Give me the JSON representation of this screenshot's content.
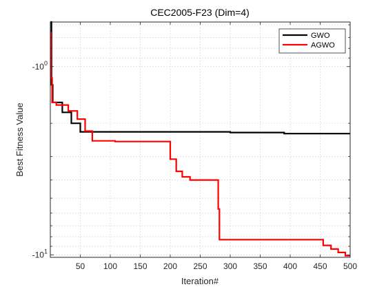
{
  "chart_data": {
    "type": "line",
    "title": "CEC2005-F23 (Dim=4)",
    "xlabel": "Iteration#",
    "ylabel": "Best Fitness Value",
    "xlim": [
      0,
      500
    ],
    "yscale": "log-magnitude (negative values)",
    "ylim": [
      -10.3,
      -0.58
    ],
    "xticks": [
      50,
      100,
      150,
      200,
      250,
      300,
      350,
      400,
      450,
      500
    ],
    "xtick_labels": [
      "50",
      "100",
      "150",
      "200",
      "250",
      "300",
      "350",
      "400",
      "450",
      "500"
    ],
    "ytick_labels": [
      {
        "value": -1,
        "label": "-10",
        "exp": "0"
      },
      {
        "value": -10,
        "label": "-10",
        "exp": "1"
      }
    ],
    "grid": true,
    "legend_position": "top-right",
    "series": [
      {
        "name": "GWO",
        "color": "#000000",
        "x": [
          0,
          2,
          2,
          4,
          4,
          20,
          20,
          35,
          35,
          50,
          50,
          300,
          300,
          390,
          390,
          500
        ],
        "y": [
          -0.58,
          -0.58,
          -1.25,
          -1.25,
          -1.55,
          -1.55,
          -1.75,
          -1.75,
          -2.0,
          -2.0,
          -2.22,
          -2.22,
          -2.24,
          -2.24,
          -2.27,
          -2.27
        ]
      },
      {
        "name": "AGWO",
        "color": "#ff0000",
        "x": [
          0,
          1,
          1,
          3,
          3,
          10,
          10,
          30,
          30,
          45,
          45,
          58,
          58,
          70,
          70,
          108,
          108,
          200,
          200,
          210,
          210,
          220,
          220,
          233,
          233,
          280,
          280,
          282,
          282,
          455,
          455,
          468,
          468,
          480,
          480,
          492,
          492,
          500
        ],
        "y": [
          -0.66,
          -0.66,
          -1.15,
          -1.15,
          -1.55,
          -1.55,
          -1.6,
          -1.6,
          -1.72,
          -1.72,
          -1.9,
          -1.9,
          -2.2,
          -2.2,
          -2.48,
          -2.48,
          -2.5,
          -2.5,
          -3.1,
          -3.1,
          -3.6,
          -3.6,
          -3.85,
          -3.85,
          -4.0,
          -4.0,
          -5.7,
          -5.7,
          -8.3,
          -8.3,
          -8.9,
          -8.9,
          -9.3,
          -9.3,
          -9.7,
          -9.7,
          -10.1,
          -10.1
        ]
      }
    ]
  }
}
